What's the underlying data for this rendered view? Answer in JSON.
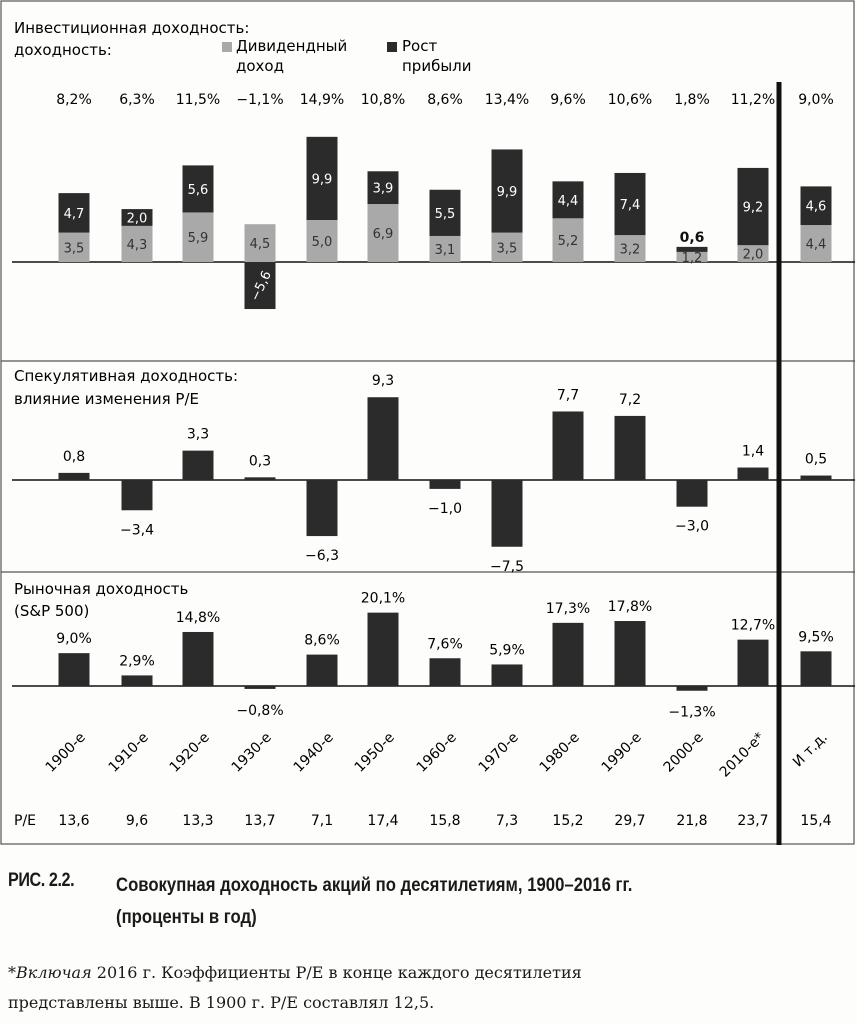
{
  "colors": {
    "dividend": "#a9a9a9",
    "growth": "#2b2b2b",
    "bar": "#2b2b2b",
    "frame": "#555555"
  },
  "chart_data": [
    {
      "type": "bar",
      "stacked": true,
      "title": "Инвестиционная доходность:",
      "categories": [
        "1900-е",
        "1910-е",
        "1920-е",
        "1930-е",
        "1940-е",
        "1950-е",
        "1960-е",
        "1970-е",
        "1980-е",
        "1990-е",
        "2000-е",
        "2010-е*",
        "И т.д."
      ],
      "series": [
        {
          "name": "Дивидендный доход",
          "values": [
            3.5,
            4.3,
            5.9,
            4.5,
            5.0,
            6.9,
            3.1,
            3.5,
            5.2,
            3.2,
            1.2,
            2.0,
            4.4
          ],
          "labels": [
            "3,5",
            "4,3",
            "5,9",
            "4,5",
            "5,0",
            "6,9",
            "3,1",
            "3,5",
            "5,2",
            "3,2",
            "1,2",
            "2,0",
            "4,4"
          ]
        },
        {
          "name": "Рост прибыли",
          "values": [
            4.7,
            2.0,
            5.6,
            -5.6,
            9.9,
            3.9,
            5.5,
            9.9,
            4.4,
            7.4,
            0.6,
            9.2,
            4.6
          ],
          "labels": [
            "4,7",
            "2,0",
            "5,6",
            "−5,6",
            "9,9",
            "3,9",
            "5,5",
            "9,9",
            "4,4",
            "7,4",
            "0,6",
            "9,2",
            "4,6"
          ]
        }
      ],
      "totals": [
        "8,2%",
        "6,3%",
        "11,5%",
        "−1,1%",
        "14,9%",
        "10,8%",
        "8,6%",
        "13,4%",
        "9,6%",
        "10,6%",
        "1,8%",
        "11,2%",
        "9,0%"
      ]
    },
    {
      "type": "bar",
      "title": [
        "Спекулятивная доходность:",
        "влияние изменения P/E"
      ],
      "values": [
        0.8,
        -3.4,
        3.3,
        0.3,
        -6.3,
        9.3,
        -1.0,
        -7.5,
        7.7,
        7.2,
        -3.0,
        1.4,
        0.5
      ],
      "labels": [
        "0,8",
        "−3,4",
        "3,3",
        "0,3",
        "−6,3",
        "9,3",
        "−1,0",
        "−7,5",
        "7,7",
        "7,2",
        "−3,0",
        "1,4",
        "0,5"
      ]
    },
    {
      "type": "bar",
      "title": [
        "Рыночная доходность",
        "(S&P 500)"
      ],
      "values": [
        9.0,
        2.9,
        14.8,
        -0.8,
        8.6,
        20.1,
        7.6,
        5.9,
        17.3,
        17.8,
        -1.3,
        12.7,
        9.5
      ],
      "labels": [
        "9,0%",
        "2,9%",
        "14,8%",
        "−0,8%",
        "8,6%",
        "20,1%",
        "7,6%",
        "5,9%",
        "17,3%",
        "17,8%",
        "−1,3%",
        "12,7%",
        "9,5%"
      ]
    }
  ],
  "pe": {
    "label": "P/E",
    "values": [
      "13,6",
      "9,6",
      "13,3",
      "13,7",
      "7,1",
      "17,4",
      "15,8",
      "7,3",
      "15,2",
      "29,7",
      "21,8",
      "23,7",
      "15,4"
    ]
  },
  "caption": {
    "number": "РИС. 2.2.",
    "line1": "Совокупная доходность акций по десятилетиям, 1900–2016 гг.",
    "line2": "(проценты в год)"
  },
  "note": {
    "em": "*Включая",
    "line1_rest": " 2016 г. Коэффициенты P/E в конце каждого десятилетия",
    "line2": "представлены выше. В 1900 г. P/E составлял 12,5."
  }
}
